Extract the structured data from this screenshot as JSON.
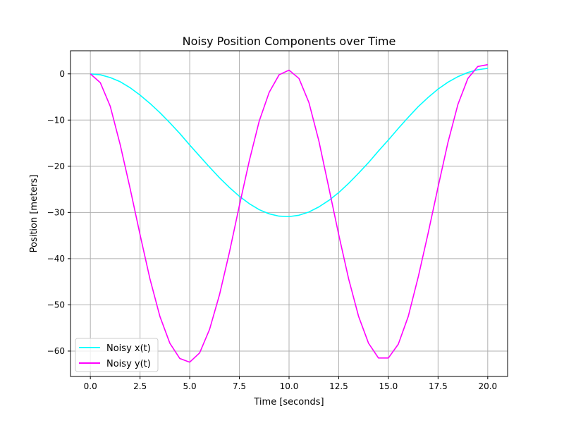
{
  "chart_data": {
    "type": "line",
    "title": "Noisy Position Components over Time",
    "xlabel": "Time [seconds]",
    "ylabel": "Position [meters]",
    "xlim": [
      -1.0,
      21.0
    ],
    "ylim": [
      -65.5,
      5.0
    ],
    "xticks": [
      {
        "value": 0.0,
        "label": "0.0"
      },
      {
        "value": 2.5,
        "label": "2.5"
      },
      {
        "value": 5.0,
        "label": "5.0"
      },
      {
        "value": 7.5,
        "label": "7.5"
      },
      {
        "value": 10.0,
        "label": "10.0"
      },
      {
        "value": 12.5,
        "label": "12.5"
      },
      {
        "value": 15.0,
        "label": "15.0"
      },
      {
        "value": 17.5,
        "label": "17.5"
      },
      {
        "value": 20.0,
        "label": "20.0"
      }
    ],
    "yticks": [
      {
        "value": 0,
        "label": "0"
      },
      {
        "value": -10,
        "label": "−10"
      },
      {
        "value": -20,
        "label": "−20"
      },
      {
        "value": -30,
        "label": "−30"
      },
      {
        "value": -40,
        "label": "−40"
      },
      {
        "value": -50,
        "label": "−50"
      },
      {
        "value": -60,
        "label": "−60"
      }
    ],
    "grid": true,
    "legend_position": "lower-left",
    "x": [
      0,
      0.5,
      1,
      1.5,
      2,
      2.5,
      3,
      3.5,
      4,
      4.5,
      5,
      5.5,
      6,
      6.5,
      7,
      7.5,
      8,
      8.5,
      9,
      9.5,
      10,
      10.5,
      11,
      11.5,
      12,
      12.5,
      13,
      13.5,
      14,
      14.5,
      15,
      15.5,
      16,
      16.5,
      17,
      17.5,
      18,
      18.5,
      19,
      19.5,
      20
    ],
    "series": [
      {
        "name": "Noisy x(t)",
        "color": "#00ffff",
        "values": [
          0.0,
          -0.2,
          -0.8,
          -1.7,
          -3.0,
          -4.6,
          -6.4,
          -8.4,
          -10.6,
          -12.9,
          -15.4,
          -17.8,
          -20.2,
          -22.5,
          -24.6,
          -26.5,
          -28.1,
          -29.4,
          -30.3,
          -30.8,
          -30.9,
          -30.6,
          -29.9,
          -28.8,
          -27.4,
          -25.7,
          -23.7,
          -21.5,
          -19.2,
          -16.7,
          -14.3,
          -11.8,
          -9.4,
          -7.1,
          -5.1,
          -3.3,
          -1.8,
          -0.6,
          0.3,
          0.9,
          1.2
        ]
      },
      {
        "name": "Noisy y(t)",
        "color": "#ff00ff",
        "values": [
          0.0,
          -1.9,
          -7.0,
          -15.3,
          -24.8,
          -34.8,
          -44.4,
          -52.5,
          -58.3,
          -61.6,
          -62.4,
          -60.4,
          -55.3,
          -47.8,
          -38.6,
          -28.5,
          -18.8,
          -10.2,
          -4.0,
          -0.2,
          0.8,
          -1.0,
          -6.2,
          -14.5,
          -24.6,
          -34.8,
          -44.4,
          -52.5,
          -58.3,
          -61.5,
          -61.5,
          -58.5,
          -52.5,
          -44.0,
          -34.5,
          -24.5,
          -14.8,
          -6.6,
          -1.0,
          1.6,
          2.0
        ]
      }
    ]
  }
}
